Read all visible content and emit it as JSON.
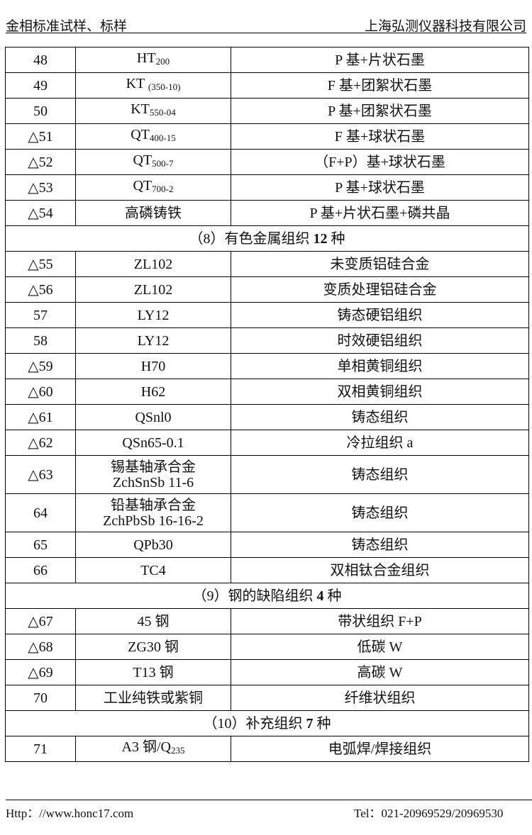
{
  "header": {
    "left": "金相标准试样、标样",
    "right": "上海弘测仪器科技有限公司"
  },
  "rows": [
    {
      "type": "row",
      "no": "48",
      "grade": "HT",
      "grade_sub": "200",
      "desc": "P 基+片状石墨"
    },
    {
      "type": "row",
      "no": "49",
      "grade": "KT ",
      "grade_sub": "(350-10)",
      "desc": "F 基+团絮状石墨"
    },
    {
      "type": "row",
      "no": "50",
      "grade": "KT",
      "grade_sub": "550-04",
      "desc": "P 基+团絮状石墨"
    },
    {
      "type": "row",
      "no": "△51",
      "grade": "QT",
      "grade_sub": "400-15",
      "desc": "F 基+球状石墨"
    },
    {
      "type": "row",
      "no": "△52",
      "grade": "QT",
      "grade_sub": "500-7",
      "desc": "（F+P）基+球状石墨"
    },
    {
      "type": "row",
      "no": "△53",
      "grade": "QT",
      "grade_sub": "700-2",
      "desc": "P 基+球状石墨"
    },
    {
      "type": "row",
      "no": "△54",
      "grade": "高磷铸铁",
      "desc": "P 基+片状石墨+磷共晶"
    },
    {
      "type": "section",
      "label": "（8）有色金属组织",
      "count": " 12 ",
      "unit": "种"
    },
    {
      "type": "row",
      "no": "△55",
      "grade": "ZL102",
      "desc": "未变质铝硅合金"
    },
    {
      "type": "row",
      "no": "△56",
      "grade": "ZL102",
      "desc": "变质处理铝硅合金"
    },
    {
      "type": "row",
      "no": "57",
      "grade": "LY12",
      "desc": "铸态硬铝组织"
    },
    {
      "type": "row",
      "no": "58",
      "grade": "LY12",
      "desc": "时效硬铝组织"
    },
    {
      "type": "row",
      "no": "△59",
      "grade": "H70",
      "desc": "单相黄铜组织"
    },
    {
      "type": "row",
      "no": "△60",
      "grade": "H62",
      "desc": "双相黄铜组织"
    },
    {
      "type": "row",
      "no": "△61",
      "grade": "QSnl0",
      "desc": "铸态组织"
    },
    {
      "type": "row",
      "no": "△62",
      "grade": "QSn65-0.1",
      "desc": "冷拉组织 a"
    },
    {
      "type": "row",
      "tall": true,
      "no": "△63",
      "grade": "锡基轴承合金",
      "grade2": "ZchSnSb 11-6",
      "desc": "铸态组织"
    },
    {
      "type": "row",
      "tall": true,
      "no": "64",
      "grade": "铅基轴承合金",
      "grade2": "ZchPbSb 16-16-2",
      "desc": "铸态组织"
    },
    {
      "type": "row",
      "no": "65",
      "grade": "QPb30",
      "desc": "铸态组织"
    },
    {
      "type": "row",
      "no": "66",
      "grade": "TC4",
      "desc": "双相钛合金组织"
    },
    {
      "type": "section",
      "label": "（9）钢的缺陷组织",
      "count": " 4 ",
      "unit": "种"
    },
    {
      "type": "row",
      "no": "△67",
      "grade": "45 钢",
      "desc": "带状组织 F+P"
    },
    {
      "type": "row",
      "no": "△68",
      "grade": "ZG30 钢",
      "desc": "低碳 W"
    },
    {
      "type": "row",
      "no": "△69",
      "grade": "T13 钢",
      "desc": "高碳 W"
    },
    {
      "type": "row",
      "no": "70",
      "grade": "工业纯铁或紫铜",
      "desc": "纤维状组织"
    },
    {
      "type": "section",
      "label": "（10）补充组织",
      "count": " 7 ",
      "unit": "种"
    },
    {
      "type": "row",
      "no": "71",
      "grade": "A3 钢/Q",
      "grade_sub": "235",
      "desc": "电弧焊/焊接组织"
    }
  ],
  "footer": {
    "left": "Http：//www.honc17.com",
    "right": "Tel：021-20969529/20969530"
  }
}
